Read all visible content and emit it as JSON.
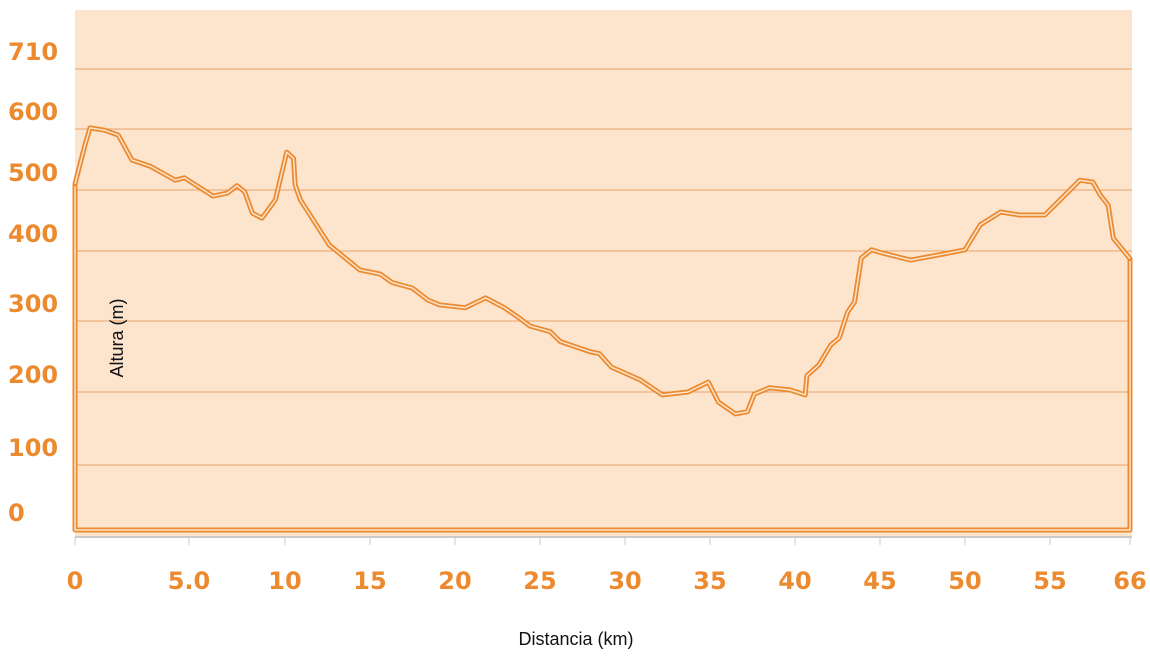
{
  "chart_data": {
    "type": "area",
    "xlabel": "Distancia (km)",
    "ylabel": "Altura (m)",
    "color": "#ec8a2f",
    "grid": true,
    "xlim": [
      0,
      66
    ],
    "ylim": [
      0,
      710
    ],
    "xticks": [
      0,
      {
        "value": 5,
        "label": "5.0"
      },
      10,
      15,
      20,
      25,
      30,
      35,
      40,
      45,
      50,
      55,
      66
    ],
    "yticks": [
      0,
      100,
      200,
      300,
      400,
      500,
      600,
      710
    ],
    "x": [
      0,
      0.44,
      0.66,
      1.3,
      1.9,
      2.5,
      3.3,
      4.4,
      4.8,
      6.25,
      7.0,
      7.5,
      7.9,
      8.3,
      8.8,
      9.5,
      10.1,
      10.5,
      10.6,
      10.9,
      12.6,
      14.4,
      15.6,
      16.3,
      17.5,
      18.4,
      19.1,
      20.6,
      21.8,
      22.9,
      23.8,
      24.4,
      25.6,
      26.2,
      27.9,
      28.5,
      29.2,
      30.9,
      32.2,
      33.7,
      34.9,
      35.5,
      36.5,
      37.2,
      37.6,
      38.5,
      39.7,
      40.6,
      40.7,
      41.4,
      42.1,
      42.6,
      43.1,
      43.5,
      43.9,
      44.5,
      45,
      46.8,
      48.8,
      50,
      50.9,
      52.1,
      53.2,
      54.7,
      56.4,
      59.1,
      60.9,
      61.9,
      63.0,
      63.7,
      66
    ],
    "values": [
      510,
      574,
      602,
      598,
      590,
      549,
      539,
      516,
      520,
      490,
      495,
      507,
      497,
      462,
      454,
      484,
      562,
      552,
      508,
      484,
      410,
      373,
      367,
      355,
      347,
      330,
      323,
      319,
      333,
      319,
      304,
      293,
      285,
      271,
      257,
      254,
      235,
      217,
      196,
      200,
      214,
      186,
      170,
      173,
      197,
      206,
      203,
      196,
      223,
      238,
      266,
      276,
      313,
      327,
      390,
      402,
      398,
      387,
      396,
      402,
      443,
      464,
      459,
      459,
      484,
      516,
      513,
      492,
      475,
      421,
      389
    ]
  }
}
